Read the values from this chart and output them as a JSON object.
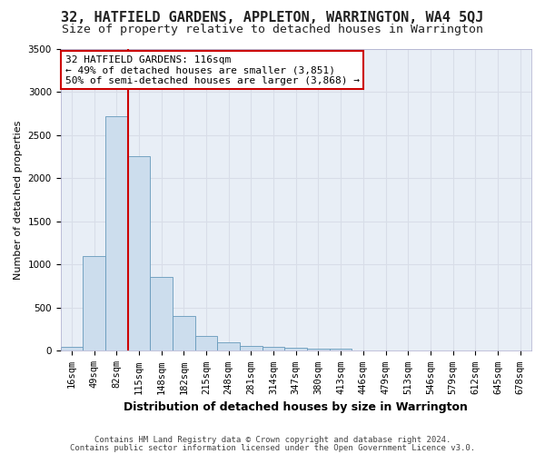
{
  "title1": "32, HATFIELD GARDENS, APPLETON, WARRINGTON, WA4 5QJ",
  "title2": "Size of property relative to detached houses in Warrington",
  "xlabel": "Distribution of detached houses by size in Warrington",
  "ylabel": "Number of detached properties",
  "footer1": "Contains HM Land Registry data © Crown copyright and database right 2024.",
  "footer2": "Contains public sector information licensed under the Open Government Licence v3.0.",
  "bin_labels": [
    "16sqm",
    "49sqm",
    "82sqm",
    "115sqm",
    "148sqm",
    "182sqm",
    "215sqm",
    "248sqm",
    "281sqm",
    "314sqm",
    "347sqm",
    "380sqm",
    "413sqm",
    "446sqm",
    "479sqm",
    "513sqm",
    "546sqm",
    "579sqm",
    "612sqm",
    "645sqm",
    "678sqm"
  ],
  "bar_values": [
    50,
    1100,
    2720,
    2260,
    860,
    410,
    175,
    100,
    55,
    50,
    35,
    30,
    25,
    0,
    0,
    0,
    0,
    0,
    0,
    0,
    0
  ],
  "bar_color": "#ccdded",
  "bar_edge_color": "#6699bb",
  "bg_color": "#e8eef6",
  "grid_color": "#d8dde8",
  "vline_color": "#cc0000",
  "annotation_text": "32 HATFIELD GARDENS: 116sqm\n← 49% of detached houses are smaller (3,851)\n50% of semi-detached houses are larger (3,868) →",
  "annotation_box_color": "#ffffff",
  "annotation_box_edge": "#cc0000",
  "ylim": [
    0,
    3500
  ],
  "yticks": [
    0,
    500,
    1000,
    1500,
    2000,
    2500,
    3000,
    3500
  ],
  "title1_fontsize": 11,
  "title2_fontsize": 9.5,
  "xlabel_fontsize": 9,
  "ylabel_fontsize": 8,
  "tick_fontsize": 7.5,
  "annot_fontsize": 8,
  "footer_fontsize": 6.5,
  "fig_bg": "#ffffff"
}
